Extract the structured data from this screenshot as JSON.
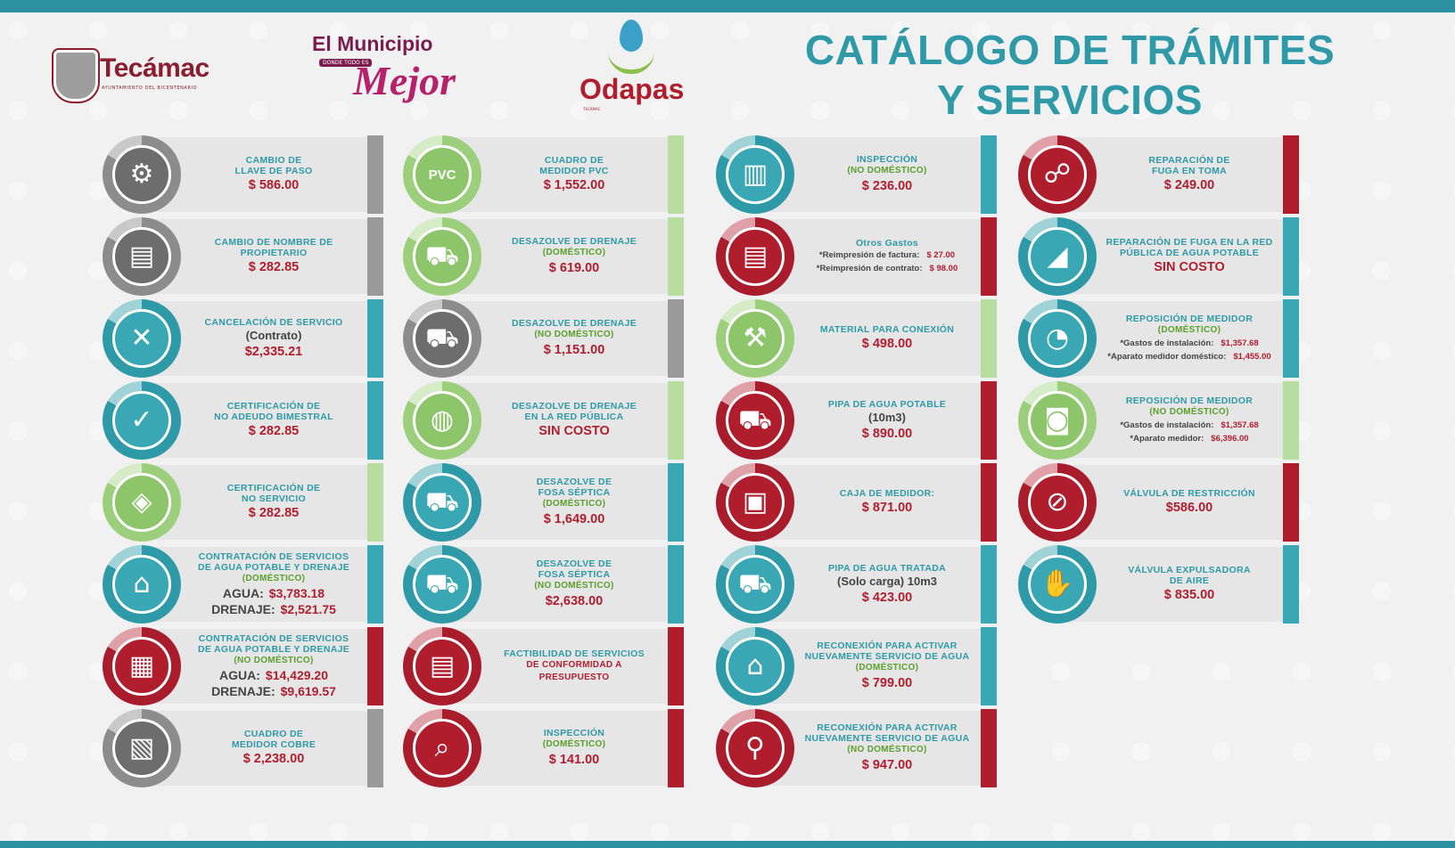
{
  "header": {
    "title_line1": "CATÁLOGO DE TRÁMITES",
    "title_line2": "Y SERVICIOS",
    "logo_tecamac": "Tecámac",
    "logo_tecamac_sub": "AYUNTAMIENTO DEL BICENTENARIO",
    "logo_municipio_l1": "El Municipio",
    "logo_municipio_tag": "DONDE TODO ES",
    "logo_municipio_l2": "Mejor",
    "logo_odapas": "Odapas",
    "logo_odapas_sub": "TECÁMAC"
  },
  "colors": {
    "teal": "#2e9aa8",
    "red": "#b01e2e",
    "gray": "#8c8c8c",
    "light_green": "#9ccf7c"
  },
  "col1": [
    {
      "icon": "valve-worker-icon",
      "l1": "CAMBIO DE",
      "l2": "LLAVE DE PASO",
      "price": "$ 586.00"
    },
    {
      "icon": "document-user-icon",
      "l1": "CAMBIO DE NOMBRE DE",
      "l2": "PROPIETARIO",
      "price": "$ 282.85"
    },
    {
      "icon": "document-cancel-icon",
      "l1": "CANCELACIÓN DE SERVICIO",
      "sub": "(Contrato)",
      "price": "$2,335.21"
    },
    {
      "icon": "document-check-icon",
      "l1": "CERTIFICACIÓN DE",
      "l2": "NO ADEUDO BIMESTRAL",
      "price": "$ 282.85"
    },
    {
      "icon": "document-drop-icon",
      "l1": "CERTIFICACIÓN DE",
      "l2": "NO SERVICIO",
      "price": "$ 282.85"
    },
    {
      "icon": "house-drop-icon",
      "l1": "CONTRATACIÓN DE SERVICIOS",
      "l2": "DE AGUA POTABLE Y DRENAJE",
      "sub": "(DOMÉSTICO)",
      "r1k": "AGUA:",
      "r1v": "$3,783.18",
      "r2k": "DRENAJE:",
      "r2v": "$2,521.75"
    },
    {
      "icon": "shop-drop-icon",
      "l1": "CONTRATACIÓN DE SERVICIOS",
      "l2": "DE AGUA POTABLE Y DRENAJE",
      "sub": "(NO DOMÉSTICO)",
      "r1k": "AGUA:",
      "r1v": "$14,429.20",
      "r2k": "DRENAJE:",
      "r2v": "$9,619.57"
    },
    {
      "icon": "copper-meter-box-icon",
      "l1": "CUADRO DE",
      "l2": "MEDIDOR COBRE",
      "price": "$ 2,238.00"
    }
  ],
  "col2": [
    {
      "icon": "pvc-icon",
      "icon_text": "PVC",
      "l1": "CUADRO DE",
      "l2": "MEDIDOR PVC",
      "price": "$ 1,552.00"
    },
    {
      "icon": "drain-truck-icon",
      "l1": "DESAZOLVE DE DRENAJE",
      "sub": "(DOMÉSTICO)",
      "price": "$ 619.00"
    },
    {
      "icon": "tanker-truck-icon",
      "l1": "DESAZOLVE DE DRENAJE",
      "sub": "(NO DOMÉSTICO)",
      "price": "$ 1,151.00"
    },
    {
      "icon": "public-drain-icon",
      "l1": "DESAZOLVE DE DRENAJE",
      "l2": "EN LA RED PÚBLICA",
      "price": "SIN COSTO"
    },
    {
      "icon": "septic-truck-icon",
      "l1": "DESAZOLVE DE",
      "l2": "FOSA SÉPTICA",
      "sub": "(DOMÉSTICO)",
      "price": "$ 1,649.00"
    },
    {
      "icon": "septic-truck-worker-icon",
      "l1": "DESAZOLVE DE",
      "l2": "FOSA SÉPTICA",
      "sub": "(NO DOMÉSTICO)",
      "price": "$2,638.00"
    },
    {
      "icon": "document-feasibility-icon",
      "l1": "FACTIBILIDAD DE SERVICIOS",
      "red1": "DE CONFORMIDAD A",
      "red2": "PRESUPUESTO"
    },
    {
      "icon": "house-search-icon",
      "l1": "INSPECCIÓN",
      "sub": "(DOMÉSTICO)",
      "price": "$ 141.00"
    }
  ],
  "col3": [
    {
      "icon": "storefront-icon",
      "l1": "INSPECCIÓN",
      "sub": "(NO DOMÉSTICO)",
      "price": "$ 236.00"
    },
    {
      "icon": "document-icon",
      "l1": "Otros Gastos",
      "s1k": "*Reimpresión de factura:",
      "s1v": "$ 27.00",
      "s2k": "*Reimpresión de contrato:",
      "s2v": "$ 98.00"
    },
    {
      "icon": "pipe-wrench-icon",
      "l1": "MATERIAL PARA CONEXIÓN",
      "price": "$ 498.00"
    },
    {
      "icon": "water-truck-icon",
      "l1": "PIPA DE AGUA POTABLE",
      "sub": "(10m3)",
      "price": "$ 890.00"
    },
    {
      "icon": "meter-box-icon",
      "l1": "CAJA DE MEDIDOR:",
      "price": "$ 871.00"
    },
    {
      "icon": "treated-water-truck-icon",
      "l1": "PIPA DE AGUA TRATADA",
      "sub": "(Solo carga) 10m3",
      "price": "$ 423.00"
    },
    {
      "icon": "house-faucet-icon",
      "l1": "RECONEXIÓN PARA ACTIVAR",
      "l2": "NUEVAMENTE SERVICIO DE AGUA",
      "sub": "(DOMÉSTICO)",
      "price": "$ 799.00"
    },
    {
      "icon": "faucet-meter-icon",
      "l1": "RECONEXIÓN PARA ACTIVAR",
      "l2": "NUEVAMENTE SERVICIO DE AGUA",
      "sub": "(NO DOMÉSTICO)",
      "price": "$ 947.00"
    }
  ],
  "col4": [
    {
      "icon": "pipe-leak-icon",
      "l1": "REPARACIÓN DE",
      "l2": "FUGA EN TOMA",
      "price": "$ 249.00"
    },
    {
      "icon": "pipe-drop-icon",
      "l1": "REPARACIÓN DE FUGA EN LA RED",
      "l2": "PÚBLICA DE AGUA POTABLE",
      "price": "SIN COSTO"
    },
    {
      "icon": "meter-gauge-icon",
      "l1": "REPOSICIÓN DE MEDIDOR",
      "sub": "(DOMÉSTICO)",
      "s1k": "*Gastos de instalación:",
      "s1v": "$1,357.68",
      "s2k": "*Aparato medidor doméstico:",
      "s2v": "$1,455.00"
    },
    {
      "icon": "meter-digital-icon",
      "l1": "REPOSICIÓN DE MEDIDOR",
      "sub": "(NO DOMÉSTICO)",
      "s1k": "*Gastos de instalación:",
      "s1v": "$1,357.68",
      "s2k": "*Aparato medidor:",
      "s2v": "$6,396.00"
    },
    {
      "icon": "faucet-restrict-icon",
      "l1": "VÁLVULA DE RESTRICCIÓN",
      "price": "$586.00"
    },
    {
      "icon": "air-valve-worker-icon",
      "l1": "VÁLVULA EXPULSADORA",
      "l2": "DE AIRE",
      "price": "$ 835.00"
    }
  ]
}
